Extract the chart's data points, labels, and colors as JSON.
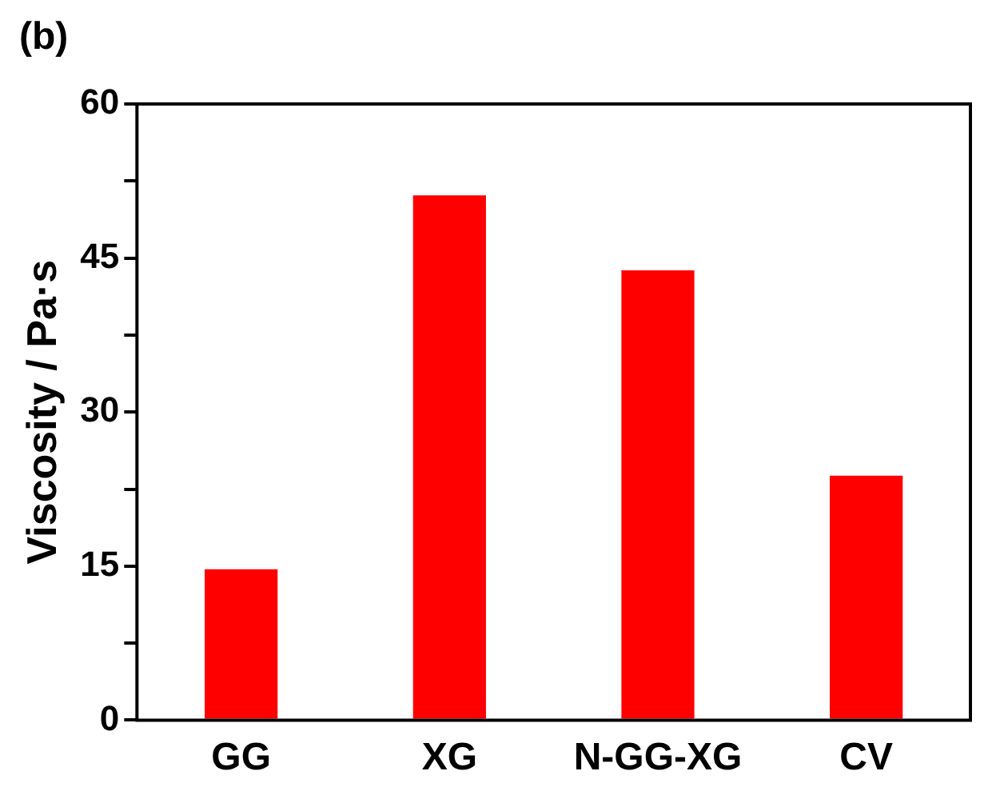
{
  "chart_data": {
    "type": "bar",
    "ylabel": "Viscosity / Pa·s",
    "annotations": [
      "(b)"
    ],
    "categories": [
      "GG",
      "XG",
      "N-GG-XG",
      "CV"
    ],
    "values": [
      14.7,
      51.1,
      43.8,
      23.8
    ],
    "color": "#ff0000",
    "ylim": [
      0,
      60
    ],
    "yticks": [
      0,
      {
        "value": 7.5,
        "label": null
      },
      15,
      {
        "value": 22.5,
        "label": null
      },
      30,
      {
        "value": 37.5,
        "label": null
      },
      45,
      {
        "value": 52.5,
        "label": null
      },
      60
    ],
    "grid": false,
    "legend": false
  }
}
